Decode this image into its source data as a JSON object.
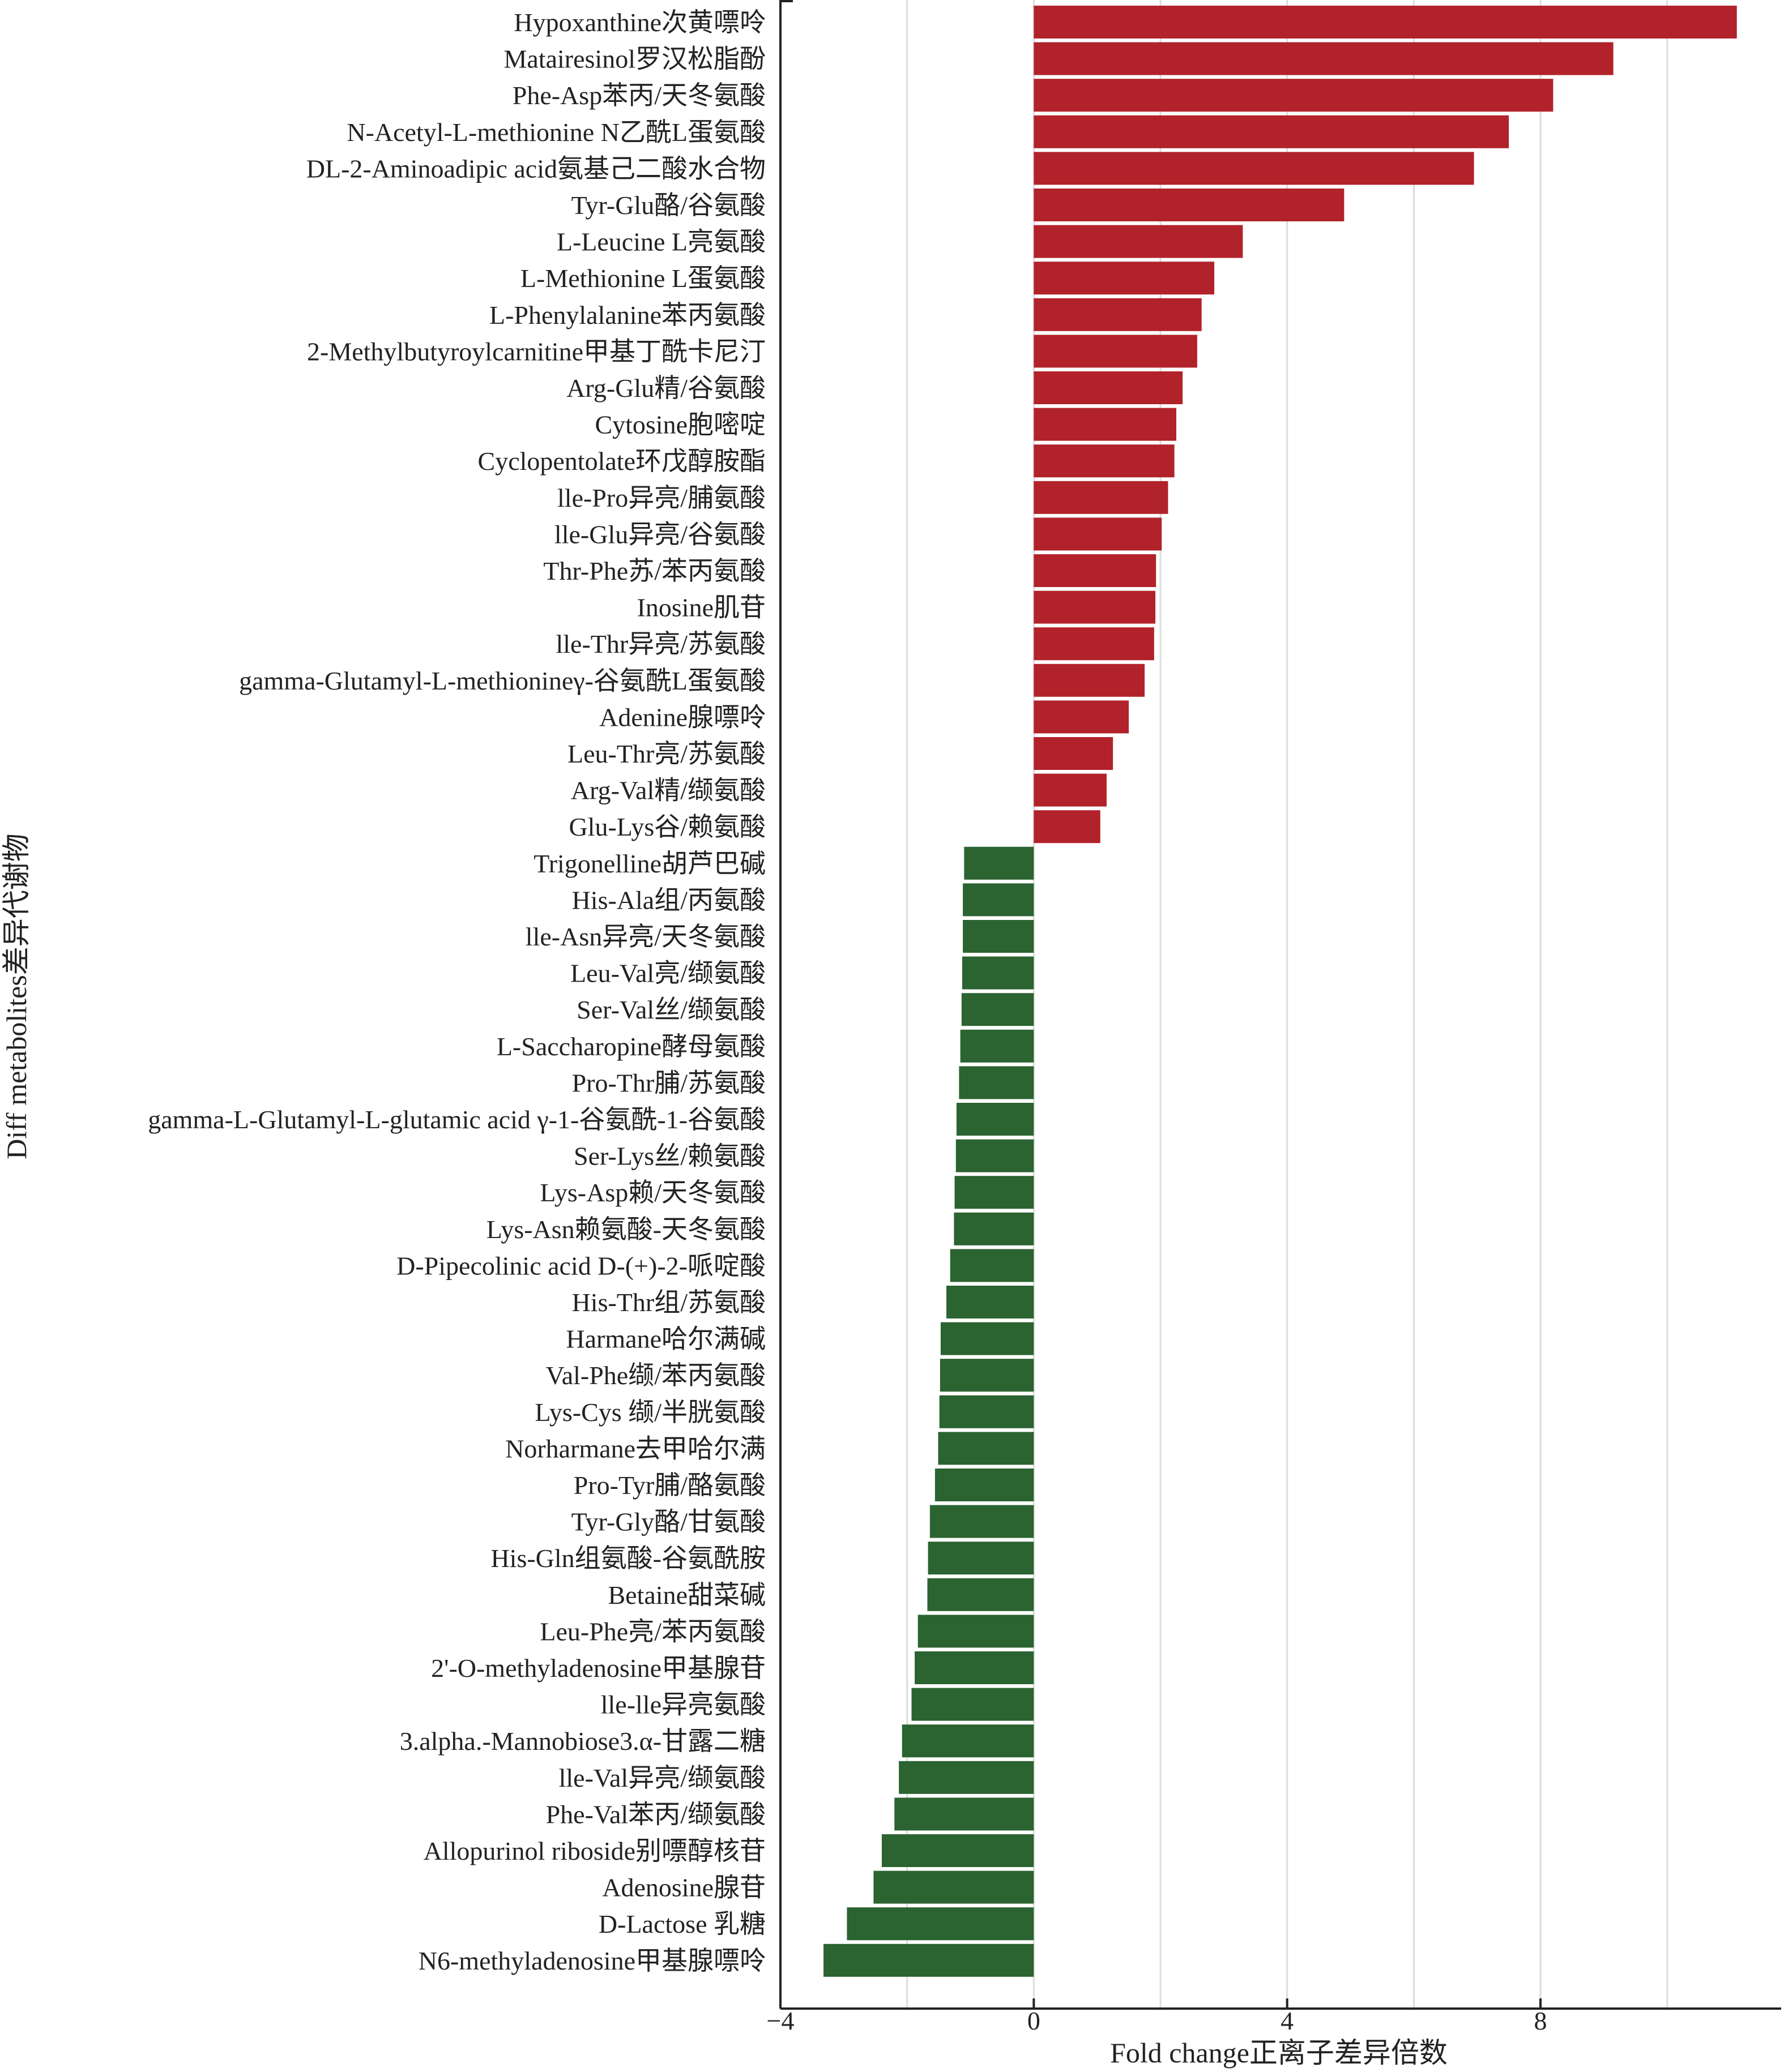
{
  "chart_data": {
    "type": "bar",
    "orientation": "horizontal",
    "xlabel": "Fold change正离子差异倍数",
    "ylabel": "Diff metabolites差异代谢物",
    "xlim": [
      -4,
      11.8
    ],
    "xticks": [
      -4,
      0,
      4,
      8
    ],
    "xtick_labels": [
      "−4",
      "0",
      "4",
      "8"
    ],
    "grid": "vertical",
    "colors": {
      "positive": "#b2222a",
      "negative": "#2b6331"
    },
    "categories": [
      "Hypoxanthine次黄嘌呤",
      "Matairesinol罗汉松脂酚",
      "Phe-Asp苯丙/天冬氨酸",
      "N-Acetyl-L-methionine N乙酰L蛋氨酸",
      "DL-2-Aminoadipic acid氨基己二酸水合物",
      "Tyr-Glu酪/谷氨酸",
      "L-Leucine L亮氨酸",
      "L-Methionine L蛋氨酸",
      "L-Phenylalanine苯丙氨酸",
      "2-Methylbutyroylcarnitine甲基丁酰卡尼汀",
      "Arg-Glu精/谷氨酸",
      "Cytosine胞嘧啶",
      "Cyclopentolate环戊醇胺酯",
      "lle-Pro异亮/脯氨酸",
      "lle-Glu异亮/谷氨酸",
      "Thr-Phe苏/苯丙氨酸",
      "Inosine肌苷",
      "lle-Thr异亮/苏氨酸",
      "gamma-Glutamyl-L-methionineγ-谷氨酰L蛋氨酸",
      "Adenine腺嘌呤",
      "Leu-Thr亮/苏氨酸",
      "Arg-Val精/缬氨酸",
      "Glu-Lys谷/赖氨酸",
      "Trigonelline胡芦巴碱",
      "His-Ala组/丙氨酸",
      "lle-Asn异亮/天冬氨酸",
      "Leu-Val亮/缬氨酸",
      "Ser-Val丝/缬氨酸",
      "L-Saccharopine酵母氨酸",
      "Pro-Thr脯/苏氨酸",
      "gamma-L-Glutamyl-L-glutamic acid γ-1-谷氨酰-1-谷氨酸",
      "Ser-Lys丝/赖氨酸",
      "Lys-Asp赖/天冬氨酸",
      "Lys-Asn赖氨酸-天冬氨酸",
      "D-Pipecolinic acid D-(+)-2-哌啶酸",
      "His-Thr组/苏氨酸",
      "Harmane哈尔满碱",
      "Val-Phe缬/苯丙氨酸",
      "Lys-Cys 缬/半胱氨酸",
      "Norharmane去甲哈尔满",
      "Pro-Tyr脯/酪氨酸",
      "Tyr-Gly酪/甘氨酸",
      "His-Gln组氨酸-谷氨酰胺",
      "Betaine甜菜碱",
      "Leu-Phe亮/苯丙氨酸",
      "2'-O-methyladenosine甲基腺苷",
      "lle-lle异亮氨酸",
      "3.alpha.-Mannobiose3.α-甘露二糖",
      "lle-Val异亮/缬氨酸",
      "Phe-Val苯丙/缬氨酸",
      "Allopurinol riboside别嘌醇核苷",
      "Adenosine腺苷",
      "D-Lactose 乳糖",
      "N6-methyladenosine甲基腺嘌呤"
    ],
    "values": [
      11.1,
      9.15,
      8.2,
      7.5,
      6.95,
      4.9,
      3.3,
      2.85,
      2.65,
      2.58,
      2.35,
      2.25,
      2.22,
      2.12,
      2.02,
      1.93,
      1.92,
      1.9,
      1.75,
      1.5,
      1.25,
      1.15,
      1.05,
      -1.1,
      -1.12,
      -1.12,
      -1.13,
      -1.14,
      -1.16,
      -1.18,
      -1.22,
      -1.23,
      -1.25,
      -1.26,
      -1.32,
      -1.38,
      -1.47,
      -1.48,
      -1.49,
      -1.51,
      -1.56,
      -1.64,
      -1.67,
      -1.68,
      -1.83,
      -1.88,
      -1.93,
      -2.08,
      -2.13,
      -2.2,
      -2.4,
      -2.53,
      -2.95,
      -3.32
    ]
  }
}
